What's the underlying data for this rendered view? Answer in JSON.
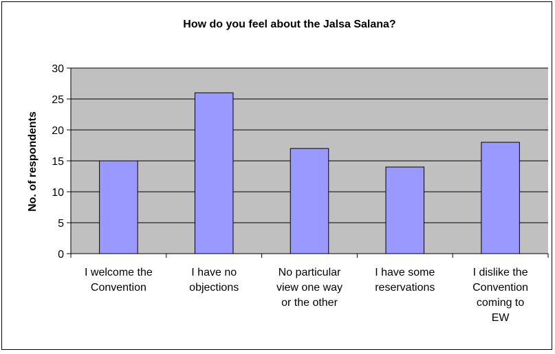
{
  "chart_data": {
    "type": "bar",
    "title": "How do you feel about the Jalsa Salana?",
    "xlabel": "",
    "ylabel": "No. of respondents",
    "ylim": [
      0,
      30
    ],
    "yticks": [
      0,
      5,
      10,
      15,
      20,
      25,
      30
    ],
    "grid": true,
    "legend": "none",
    "categories": [
      [
        "I welcome the",
        "Convention"
      ],
      [
        "I have no",
        "objections"
      ],
      [
        "No particular",
        "view one way",
        "or the other"
      ],
      [
        "I have some",
        "reservations"
      ],
      [
        "I dislike the",
        "Convention",
        "coming to",
        "EW"
      ]
    ],
    "values": [
      15,
      26,
      17,
      14,
      18
    ],
    "colors": {
      "plot_background": "#c0c0c0",
      "bar_fill": "#9999ff",
      "bar_stroke": "#000000",
      "gridline": "#000000"
    }
  }
}
